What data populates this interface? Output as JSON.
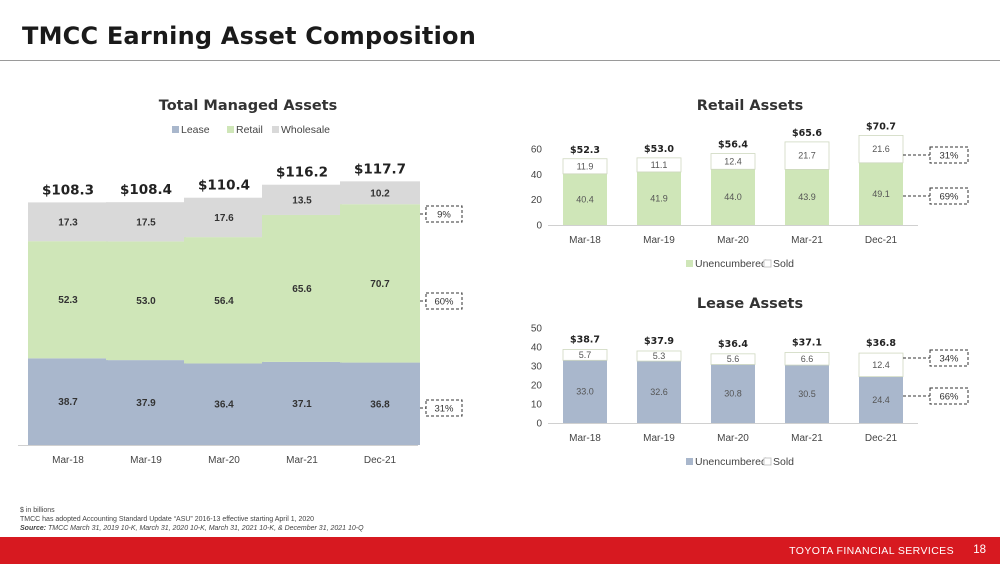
{
  "page": {
    "title": "TMCC Earning Asset Composition",
    "footnote_units": "$ in billions",
    "footnote_asu": "TMCC has adopted Accounting Standard Update “ASU” 2016-13 effective starting April 1, 2020",
    "source_label": "Source:",
    "source_text": "TMCC March 31, 2019 10-K, March 31, 2020 10-K, March 31, 2021 10-K, & December 31, 2021 10-Q",
    "footer_brand": "TOYOTA FINANCIAL SERVICES",
    "page_number": "18"
  },
  "colors": {
    "lease": "#a9b7cc",
    "retail": "#cfe6b8",
    "wholesale": "#d9d9d9",
    "unencumbered_retail": "#cfe6b8",
    "unencumbered_lease": "#a9b7cc",
    "sold": "#ffffff",
    "footer": "#d71920"
  },
  "chart_data": [
    {
      "type": "bar",
      "stacked": true,
      "title": "Total Managed Assets",
      "categories": [
        "Mar-18",
        "Mar-19",
        "Mar-20",
        "Mar-21",
        "Dec-21"
      ],
      "series": [
        {
          "name": "Lease",
          "values": [
            "38.7",
            "37.9",
            "36.4",
            "37.1",
            "36.8"
          ]
        },
        {
          "name": "Retail",
          "values": [
            "52.3",
            "53.0",
            "56.4",
            "65.6",
            "70.7"
          ]
        },
        {
          "name": "Wholesale",
          "values": [
            "17.3",
            "17.5",
            "17.6",
            "13.5",
            "10.2"
          ]
        }
      ],
      "totals": [
        "$108.3",
        "$108.4",
        "$110.4",
        "$116.2",
        "$117.7"
      ],
      "callouts": [
        "9%",
        "60%",
        "31%"
      ],
      "legend": "top",
      "ylim": [
        0,
        125
      ],
      "y_axis_shown": false
    },
    {
      "type": "bar",
      "stacked": true,
      "title": "Retail Assets",
      "categories": [
        "Mar-18",
        "Mar-19",
        "Mar-20",
        "Mar-21",
        "Dec-21"
      ],
      "series": [
        {
          "name": "Unencumbered",
          "values": [
            "40.4",
            "41.9",
            "44.0",
            "43.9",
            "49.1"
          ]
        },
        {
          "name": "Sold",
          "values": [
            "11.9",
            "11.1",
            "12.4",
            "21.7",
            "21.6"
          ]
        }
      ],
      "totals": [
        "$52.3",
        "$53.0",
        "$56.4",
        "$65.6",
        "$70.7"
      ],
      "callouts": [
        "31%",
        "69%"
      ],
      "yticks": [
        "0",
        "20",
        "40",
        "60"
      ],
      "ylim": [
        0,
        60
      ],
      "legend": "bottom"
    },
    {
      "type": "bar",
      "stacked": true,
      "title": "Lease Assets",
      "categories": [
        "Mar-18",
        "Mar-19",
        "Mar-20",
        "Mar-21",
        "Dec-21"
      ],
      "series": [
        {
          "name": "Unencumbered",
          "values": [
            "33.0",
            "32.6",
            "30.8",
            "30.5",
            "24.4"
          ]
        },
        {
          "name": "Sold",
          "values": [
            "5.7",
            "5.3",
            "5.6",
            "6.6",
            "12.4"
          ]
        }
      ],
      "totals": [
        "$38.7",
        "$37.9",
        "$36.4",
        "$37.1",
        "$36.8"
      ],
      "callouts": [
        "34%",
        "66%"
      ],
      "yticks": [
        "0",
        "10",
        "20",
        "30",
        "40",
        "50"
      ],
      "ylim": [
        0,
        50
      ],
      "legend": "bottom"
    }
  ]
}
